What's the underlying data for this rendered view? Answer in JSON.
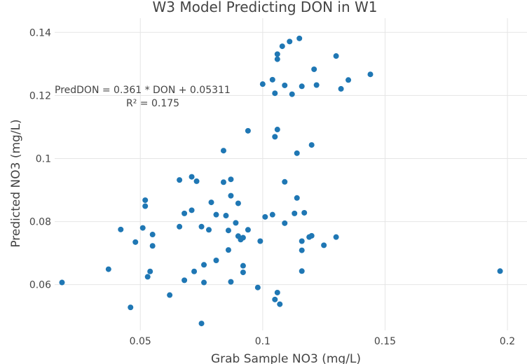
{
  "chart_data": {
    "type": "scatter",
    "title": "W3 Model Predicting DON in W1",
    "xlabel": "Grab Sample NO3 (mg/L)",
    "ylabel": "Predicted NO3 (mg/L)",
    "xlim": [
      0.015,
      0.208
    ],
    "ylim": [
      0.0455,
      0.1445
    ],
    "xticks": [
      0.05,
      0.1,
      0.15,
      0.2
    ],
    "xtick_labels": [
      "0.05",
      "0.1",
      "0.15",
      "0.2"
    ],
    "yticks": [
      0.06,
      0.08,
      0.1,
      0.12,
      0.14
    ],
    "ytick_labels": [
      "0.06",
      "0.08",
      "0.1",
      "0.12",
      "0.14"
    ],
    "grid": true,
    "marker_color": "#1f77b4",
    "annotation": [
      "PredDON  =  0.361 * DON + 0.05311",
      "R² =  0.175"
    ],
    "points": [
      [
        0.018,
        0.0607
      ],
      [
        0.037,
        0.0649
      ],
      [
        0.042,
        0.0775
      ],
      [
        0.046,
        0.0528
      ],
      [
        0.048,
        0.0735
      ],
      [
        0.051,
        0.078
      ],
      [
        0.052,
        0.0868
      ],
      [
        0.052,
        0.0849
      ],
      [
        0.053,
        0.0625
      ],
      [
        0.054,
        0.0642
      ],
      [
        0.055,
        0.0723
      ],
      [
        0.055,
        0.0759
      ],
      [
        0.062,
        0.0567
      ],
      [
        0.066,
        0.0932
      ],
      [
        0.066,
        0.0784
      ],
      [
        0.068,
        0.0826
      ],
      [
        0.068,
        0.0614
      ],
      [
        0.071,
        0.0942
      ],
      [
        0.071,
        0.0836
      ],
      [
        0.072,
        0.0642
      ],
      [
        0.073,
        0.0928
      ],
      [
        0.075,
        0.0784
      ],
      [
        0.075,
        0.0477
      ],
      [
        0.076,
        0.0607
      ],
      [
        0.076,
        0.0663
      ],
      [
        0.078,
        0.0774
      ],
      [
        0.079,
        0.0861
      ],
      [
        0.081,
        0.0822
      ],
      [
        0.081,
        0.0677
      ],
      [
        0.084,
        0.1025
      ],
      [
        0.084,
        0.0925
      ],
      [
        0.085,
        0.0819
      ],
      [
        0.086,
        0.0772
      ],
      [
        0.086,
        0.071
      ],
      [
        0.087,
        0.0882
      ],
      [
        0.087,
        0.0934
      ],
      [
        0.087,
        0.0609
      ],
      [
        0.089,
        0.0796
      ],
      [
        0.09,
        0.0858
      ],
      [
        0.09,
        0.0754
      ],
      [
        0.091,
        0.0743
      ],
      [
        0.092,
        0.0749
      ],
      [
        0.092,
        0.066
      ],
      [
        0.092,
        0.0639
      ],
      [
        0.094,
        0.0774
      ],
      [
        0.094,
        0.1088
      ],
      [
        0.098,
        0.0591
      ],
      [
        0.099,
        0.0738
      ],
      [
        0.1,
        0.1236
      ],
      [
        0.101,
        0.0815
      ],
      [
        0.104,
        0.125
      ],
      [
        0.104,
        0.0822
      ],
      [
        0.105,
        0.1207
      ],
      [
        0.105,
        0.1069
      ],
      [
        0.105,
        0.0553
      ],
      [
        0.106,
        0.1092
      ],
      [
        0.106,
        0.1331
      ],
      [
        0.106,
        0.1315
      ],
      [
        0.106,
        0.0575
      ],
      [
        0.107,
        0.0538
      ],
      [
        0.108,
        0.1356
      ],
      [
        0.109,
        0.1232
      ],
      [
        0.109,
        0.0926
      ],
      [
        0.109,
        0.0795
      ],
      [
        0.111,
        0.1371
      ],
      [
        0.112,
        0.1204
      ],
      [
        0.113,
        0.0826
      ],
      [
        0.114,
        0.1017
      ],
      [
        0.114,
        0.0875
      ],
      [
        0.115,
        0.1381
      ],
      [
        0.116,
        0.1229
      ],
      [
        0.116,
        0.0738
      ],
      [
        0.116,
        0.0709
      ],
      [
        0.116,
        0.0643
      ],
      [
        0.117,
        0.0828
      ],
      [
        0.119,
        0.0751
      ],
      [
        0.12,
        0.1043
      ],
      [
        0.12,
        0.0755
      ],
      [
        0.121,
        0.1283
      ],
      [
        0.122,
        0.1233
      ],
      [
        0.125,
        0.0725
      ],
      [
        0.13,
        0.1325
      ],
      [
        0.13,
        0.0751
      ],
      [
        0.132,
        0.1221
      ],
      [
        0.135,
        0.1249
      ],
      [
        0.144,
        0.1267
      ],
      [
        0.197,
        0.0643
      ]
    ]
  }
}
